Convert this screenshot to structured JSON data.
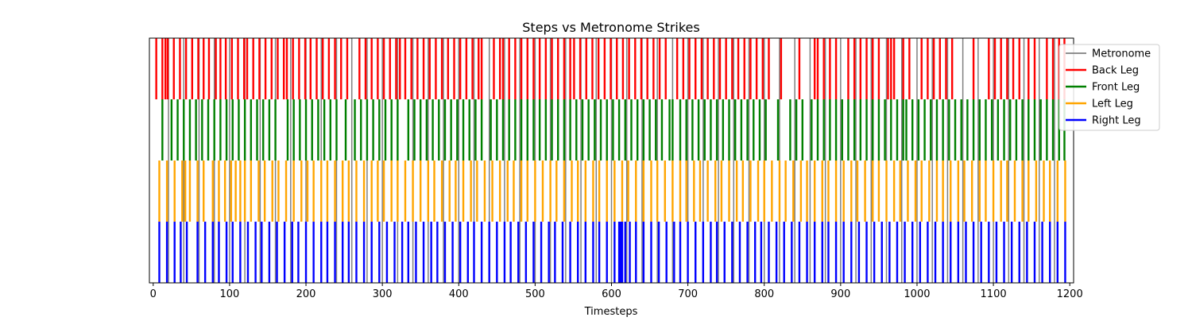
{
  "chart_data": {
    "type": "event_plot",
    "title": "Steps vs Metronome Strikes",
    "xlabel": "Timesteps",
    "ylabel": "",
    "xlim": [
      -5,
      1205
    ],
    "xticks": [
      0,
      100,
      200,
      300,
      400,
      500,
      600,
      700,
      800,
      900,
      1000,
      1100,
      1200
    ],
    "grid": false,
    "legend_position": "upper-right",
    "legend": [
      {
        "label": "Metronome",
        "color": "#808080"
      },
      {
        "label": "Back Leg",
        "color": "#ff0000"
      },
      {
        "label": "Front Leg",
        "color": "#008000"
      },
      {
        "label": "Left Leg",
        "color": "#ffa500"
      },
      {
        "label": "Right Leg",
        "color": "#0000ff"
      }
    ],
    "series": [
      {
        "name": "Metronome",
        "color": "#808080",
        "rows": [
          0,
          1,
          2,
          3
        ],
        "events": [
          20,
          40,
          60,
          80,
          100,
          120,
          140,
          160,
          180,
          200,
          220,
          240,
          260,
          280,
          300,
          320,
          340,
          360,
          380,
          400,
          420,
          440,
          460,
          480,
          500,
          520,
          540,
          560,
          580,
          600,
          620,
          640,
          660,
          680,
          700,
          720,
          740,
          760,
          780,
          800,
          820,
          840,
          860,
          880,
          900,
          920,
          940,
          960,
          980,
          1000,
          1020,
          1040,
          1060,
          1080,
          1100,
          1120,
          1140,
          1160,
          1180
        ]
      },
      {
        "name": "Back Leg",
        "color": "#ff0000",
        "rows": [
          0
        ],
        "events": [
          4,
          12,
          16,
          19,
          27,
          35,
          43,
          51,
          59,
          66,
          73,
          82,
          88,
          95,
          103,
          111,
          119,
          123,
          131,
          139,
          147,
          155,
          163,
          171,
          175,
          183,
          191,
          199,
          206,
          214,
          222,
          230,
          238,
          246,
          254,
          270,
          278,
          286,
          294,
          302,
          310,
          318,
          323,
          330,
          338,
          346,
          354,
          362,
          370,
          378,
          386,
          394,
          402,
          410,
          418,
          426,
          430,
          446,
          454,
          458,
          466,
          474,
          482,
          490,
          498,
          506,
          514,
          522,
          530,
          538,
          546,
          551,
          559,
          567,
          575,
          583,
          591,
          599,
          607,
          615,
          623,
          631,
          639,
          647,
          655,
          663,
          671,
          686,
          694,
          702,
          710,
          718,
          726,
          734,
          742,
          750,
          758,
          766,
          774,
          782,
          790,
          798,
          806,
          822,
          846,
          866,
          870,
          878,
          886,
          894,
          910,
          918,
          926,
          934,
          942,
          950,
          962,
          966,
          970,
          982,
          990,
          1006,
          1014,
          1022,
          1030,
          1038,
          1046,
          1074,
          1094,
          1102,
          1110,
          1118,
          1126,
          1134,
          1146,
          1154,
          1170,
          1178,
          1186,
          1193
        ]
      },
      {
        "name": "Front Leg",
        "color": "#008000",
        "rows": [
          1
        ],
        "events": [
          12,
          24,
          32,
          40,
          48,
          56,
          64,
          72,
          80,
          88,
          96,
          104,
          112,
          120,
          128,
          136,
          144,
          152,
          160,
          176,
          184,
          192,
          200,
          208,
          216,
          224,
          232,
          240,
          252,
          264,
          272,
          280,
          288,
          296,
          304,
          312,
          320,
          334,
          342,
          350,
          358,
          366,
          374,
          382,
          390,
          398,
          406,
          414,
          422,
          430,
          442,
          450,
          458,
          466,
          474,
          482,
          490,
          498,
          506,
          514,
          522,
          530,
          538,
          546,
          554,
          562,
          570,
          578,
          586,
          594,
          602,
          610,
          618,
          626,
          634,
          642,
          650,
          658,
          666,
          676,
          680,
          690,
          698,
          706,
          714,
          722,
          730,
          738,
          746,
          754,
          762,
          770,
          778,
          786,
          794,
          802,
          818,
          834,
          842,
          850,
          862,
          870,
          878,
          886,
          894,
          902,
          910,
          918,
          926,
          934,
          942,
          950,
          958,
          966,
          974,
          982,
          986,
          994,
          1002,
          1010,
          1018,
          1026,
          1034,
          1042,
          1050,
          1058,
          1066,
          1074,
          1082,
          1090,
          1098,
          1106,
          1114,
          1122,
          1130,
          1138,
          1146,
          1154,
          1162,
          1170,
          1178,
          1186,
          1193
        ]
      },
      {
        "name": "Left Leg",
        "color": "#ffa500",
        "rows": [
          2
        ],
        "events": [
          8,
          18,
          28,
          38,
          42,
          48,
          58,
          66,
          78,
          86,
          94,
          102,
          108,
          114,
          120,
          128,
          138,
          146,
          156,
          164,
          174,
          184,
          194,
          202,
          210,
          220,
          228,
          238,
          248,
          256,
          266,
          276,
          286,
          294,
          302,
          312,
          320,
          330,
          340,
          350,
          360,
          368,
          378,
          388,
          396,
          406,
          416,
          424,
          434,
          444,
          454,
          464,
          472,
          482,
          490,
          500,
          510,
          520,
          528,
          538,
          548,
          556,
          566,
          576,
          584,
          594,
          604,
          614,
          622,
          632,
          642,
          652,
          660,
          670,
          680,
          690,
          698,
          708,
          716,
          726,
          736,
          744,
          754,
          764,
          772,
          782,
          792,
          800,
          810,
          820,
          828,
          838,
          848,
          856,
          866,
          876,
          884,
          894,
          904,
          914,
          922,
          932,
          942,
          950,
          960,
          970,
          978,
          988,
          998,
          1006,
          1016,
          1026,
          1034,
          1044,
          1054,
          1062,
          1072,
          1082,
          1090,
          1100,
          1110,
          1118,
          1128,
          1138,
          1146,
          1156,
          1166,
          1174,
          1184,
          1194
        ]
      },
      {
        "name": "Right Leg",
        "color": "#0000ff",
        "rows": [
          3
        ],
        "events": [
          8,
          18,
          28,
          36,
          44,
          58,
          68,
          78,
          86,
          96,
          104,
          114,
          124,
          134,
          142,
          152,
          162,
          172,
          182,
          190,
          200,
          210,
          220,
          228,
          238,
          248,
          256,
          266,
          276,
          286,
          296,
          306,
          316,
          326,
          334,
          344,
          354,
          364,
          372,
          382,
          392,
          402,
          412,
          420,
          430,
          440,
          450,
          460,
          468,
          478,
          488,
          498,
          508,
          518,
          526,
          536,
          546,
          556,
          566,
          576,
          584,
          594,
          604,
          610,
          612,
          614,
          618,
          624,
          632,
          642,
          652,
          662,
          672,
          682,
          690,
          700,
          710,
          720,
          730,
          738,
          748,
          758,
          768,
          778,
          788,
          796,
          806,
          816,
          826,
          836,
          846,
          856,
          866,
          876,
          884,
          894,
          904,
          914,
          924,
          934,
          944,
          954,
          964,
          974,
          984,
          994,
          1004,
          1014,
          1024,
          1034,
          1044,
          1054,
          1064,
          1074,
          1084,
          1094,
          1104,
          1114,
          1124,
          1134,
          1144,
          1154,
          1164,
          1174,
          1184,
          1194
        ]
      }
    ]
  }
}
